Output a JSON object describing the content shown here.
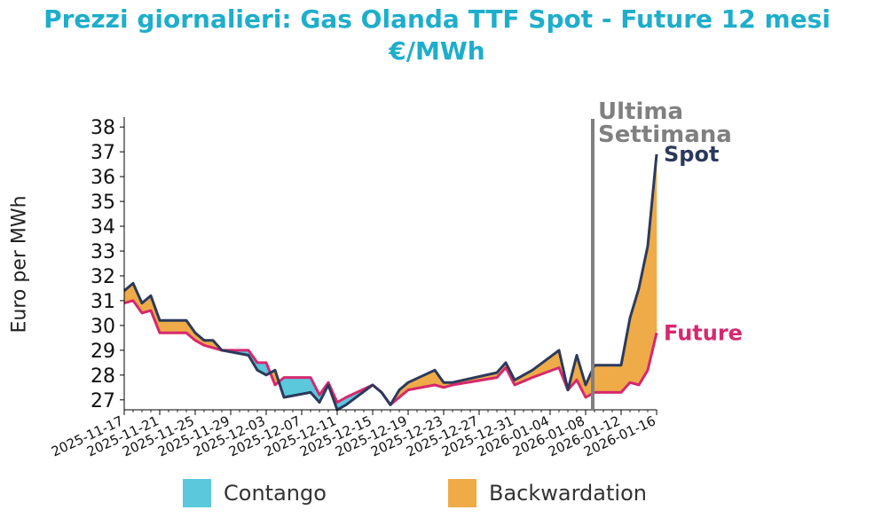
{
  "title_line1": "Prezzi giornalieri: Gas Olanda TTF Spot - Future 12 mesi",
  "title_line2": "€/MWh",
  "colors": {
    "title": "#1eaecb",
    "spot": "#2b3a5c",
    "future": "#d6286e",
    "contango": "#5bc8dc",
    "backwardation": "#eeab48",
    "marker": "#808080"
  },
  "chart_data": {
    "type": "line",
    "ylabel": "Euro per MWh",
    "ylim": [
      26.6,
      38.4
    ],
    "yticks": [
      27,
      28,
      29,
      30,
      31,
      32,
      33,
      34,
      35,
      36,
      37,
      38
    ],
    "xlim": [
      "2025-11-17",
      "2026-01-16"
    ],
    "xticks": [
      "2025-11-17",
      "2025-11-21",
      "2025-11-25",
      "2025-11-29",
      "2025-12-03",
      "2025-12-07",
      "2025-12-11",
      "2025-12-15",
      "2025-12-19",
      "2025-12-23",
      "2025-12-27",
      "2025-12-31",
      "2026-01-04",
      "2026-01-08",
      "2026-01-12",
      "2026-01-16"
    ],
    "x": [
      "2025-11-17",
      "2025-11-18",
      "2025-11-19",
      "2025-11-20",
      "2025-11-21",
      "2025-11-24",
      "2025-11-25",
      "2025-11-26",
      "2025-11-27",
      "2025-11-28",
      "2025-12-01",
      "2025-12-02",
      "2025-12-03",
      "2025-12-04",
      "2025-12-05",
      "2025-12-08",
      "2025-12-09",
      "2025-12-10",
      "2025-12-11",
      "2025-12-12",
      "2025-12-15",
      "2025-12-16",
      "2025-12-17",
      "2025-12-18",
      "2025-12-19",
      "2025-12-22",
      "2025-12-23",
      "2025-12-24",
      "2025-12-29",
      "2025-12-30",
      "2025-12-31",
      "2026-01-02",
      "2026-01-05",
      "2026-01-06",
      "2026-01-07",
      "2026-01-08",
      "2026-01-09",
      "2026-01-12",
      "2026-01-13",
      "2026-01-14",
      "2026-01-15",
      "2026-01-16"
    ],
    "series": [
      {
        "name": "Spot",
        "values": [
          31.4,
          31.7,
          30.9,
          31.2,
          30.2,
          30.2,
          29.7,
          29.4,
          29.4,
          29.0,
          28.8,
          28.2,
          28.0,
          28.2,
          27.1,
          27.3,
          26.9,
          27.6,
          26.6,
          26.8,
          27.6,
          27.3,
          26.8,
          27.4,
          27.7,
          28.2,
          27.7,
          27.7,
          28.1,
          28.5,
          27.8,
          28.2,
          29.0,
          27.4,
          28.8,
          27.6,
          28.4,
          28.4,
          30.3,
          31.5,
          33.2,
          36.9
        ]
      },
      {
        "name": "Future",
        "values": [
          30.9,
          31.0,
          30.5,
          30.6,
          29.7,
          29.7,
          29.4,
          29.2,
          29.1,
          29.0,
          29.0,
          28.5,
          28.5,
          27.6,
          27.9,
          27.9,
          27.2,
          27.7,
          26.9,
          27.1,
          27.6,
          27.3,
          26.8,
          27.1,
          27.4,
          27.6,
          27.5,
          27.6,
          27.9,
          28.3,
          27.6,
          27.9,
          28.3,
          27.4,
          27.8,
          27.1,
          27.3,
          27.3,
          27.7,
          27.6,
          28.2,
          29.7
        ]
      }
    ],
    "marker_date": "2026-01-08",
    "annotations": {
      "week": [
        "Ultima",
        "Settimana"
      ],
      "spot": "Spot",
      "future": "Future"
    },
    "legend": [
      "Contango",
      "Backwardation"
    ],
    "legend_position": "bottom"
  }
}
